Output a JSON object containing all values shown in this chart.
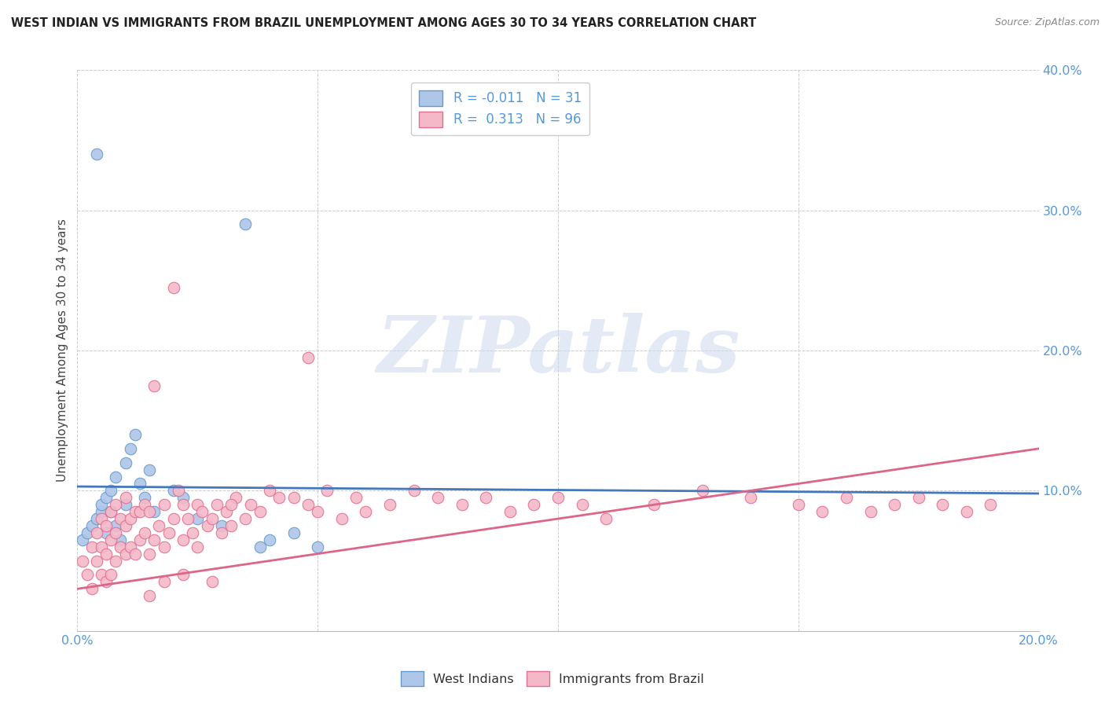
{
  "title": "WEST INDIAN VS IMMIGRANTS FROM BRAZIL UNEMPLOYMENT AMONG AGES 30 TO 34 YEARS CORRELATION CHART",
  "source": "Source: ZipAtlas.com",
  "ylabel": "Unemployment Among Ages 30 to 34 years",
  "xlim": [
    0.0,
    0.2
  ],
  "ylim": [
    0.0,
    0.4
  ],
  "west_indian_fill": "#aec6e8",
  "west_indian_edge": "#6699cc",
  "brazil_fill": "#f4b8c8",
  "brazil_edge": "#e07090",
  "trend_blue": "#4477bb",
  "trend_pink": "#dd6688",
  "R_west": -0.011,
  "N_west": 31,
  "R_brazil": 0.313,
  "N_brazil": 96,
  "legend_label_west": "West Indians",
  "legend_label_brazil": "Immigrants from Brazil",
  "watermark_text": "ZIPatlas",
  "tick_color": "#5599dd",
  "title_color": "#222222",
  "source_color": "#888888",
  "ylabel_color": "#444444",
  "west_x": [
    0.001,
    0.002,
    0.003,
    0.004,
    0.004,
    0.005,
    0.005,
    0.006,
    0.006,
    0.007,
    0.007,
    0.008,
    0.008,
    0.009,
    0.01,
    0.01,
    0.011,
    0.012,
    0.013,
    0.014,
    0.015,
    0.016,
    0.02,
    0.022,
    0.025,
    0.03,
    0.035,
    0.04,
    0.045,
    0.05,
    0.038
  ],
  "west_y": [
    0.065,
    0.07,
    0.075,
    0.08,
    0.34,
    0.085,
    0.09,
    0.07,
    0.095,
    0.085,
    0.1,
    0.075,
    0.11,
    0.065,
    0.09,
    0.12,
    0.13,
    0.14,
    0.105,
    0.095,
    0.115,
    0.085,
    0.1,
    0.095,
    0.08,
    0.075,
    0.29,
    0.065,
    0.07,
    0.06,
    0.06
  ],
  "brazil_x": [
    0.001,
    0.002,
    0.003,
    0.003,
    0.004,
    0.004,
    0.005,
    0.005,
    0.005,
    0.006,
    0.006,
    0.006,
    0.007,
    0.007,
    0.007,
    0.008,
    0.008,
    0.008,
    0.009,
    0.009,
    0.01,
    0.01,
    0.01,
    0.011,
    0.011,
    0.012,
    0.012,
    0.013,
    0.013,
    0.014,
    0.014,
    0.015,
    0.015,
    0.016,
    0.016,
    0.017,
    0.018,
    0.018,
    0.019,
    0.02,
    0.02,
    0.021,
    0.022,
    0.022,
    0.023,
    0.024,
    0.025,
    0.025,
    0.026,
    0.027,
    0.028,
    0.029,
    0.03,
    0.031,
    0.032,
    0.033,
    0.035,
    0.036,
    0.038,
    0.04,
    0.042,
    0.045,
    0.048,
    0.05,
    0.052,
    0.055,
    0.058,
    0.06,
    0.065,
    0.07,
    0.075,
    0.08,
    0.085,
    0.09,
    0.095,
    0.1,
    0.105,
    0.11,
    0.12,
    0.13,
    0.14,
    0.15,
    0.155,
    0.16,
    0.165,
    0.17,
    0.175,
    0.18,
    0.185,
    0.19,
    0.048,
    0.032,
    0.028,
    0.022,
    0.018,
    0.015
  ],
  "brazil_y": [
    0.05,
    0.04,
    0.03,
    0.06,
    0.05,
    0.07,
    0.04,
    0.06,
    0.08,
    0.035,
    0.055,
    0.075,
    0.04,
    0.065,
    0.085,
    0.05,
    0.07,
    0.09,
    0.06,
    0.08,
    0.055,
    0.075,
    0.095,
    0.06,
    0.08,
    0.055,
    0.085,
    0.065,
    0.085,
    0.07,
    0.09,
    0.055,
    0.085,
    0.065,
    0.175,
    0.075,
    0.06,
    0.09,
    0.07,
    0.245,
    0.08,
    0.1,
    0.065,
    0.09,
    0.08,
    0.07,
    0.06,
    0.09,
    0.085,
    0.075,
    0.08,
    0.09,
    0.07,
    0.085,
    0.075,
    0.095,
    0.08,
    0.09,
    0.085,
    0.1,
    0.095,
    0.095,
    0.09,
    0.085,
    0.1,
    0.08,
    0.095,
    0.085,
    0.09,
    0.1,
    0.095,
    0.09,
    0.095,
    0.085,
    0.09,
    0.095,
    0.09,
    0.08,
    0.09,
    0.1,
    0.095,
    0.09,
    0.085,
    0.095,
    0.085,
    0.09,
    0.095,
    0.09,
    0.085,
    0.09,
    0.195,
    0.09,
    0.035,
    0.04,
    0.035,
    0.025
  ]
}
